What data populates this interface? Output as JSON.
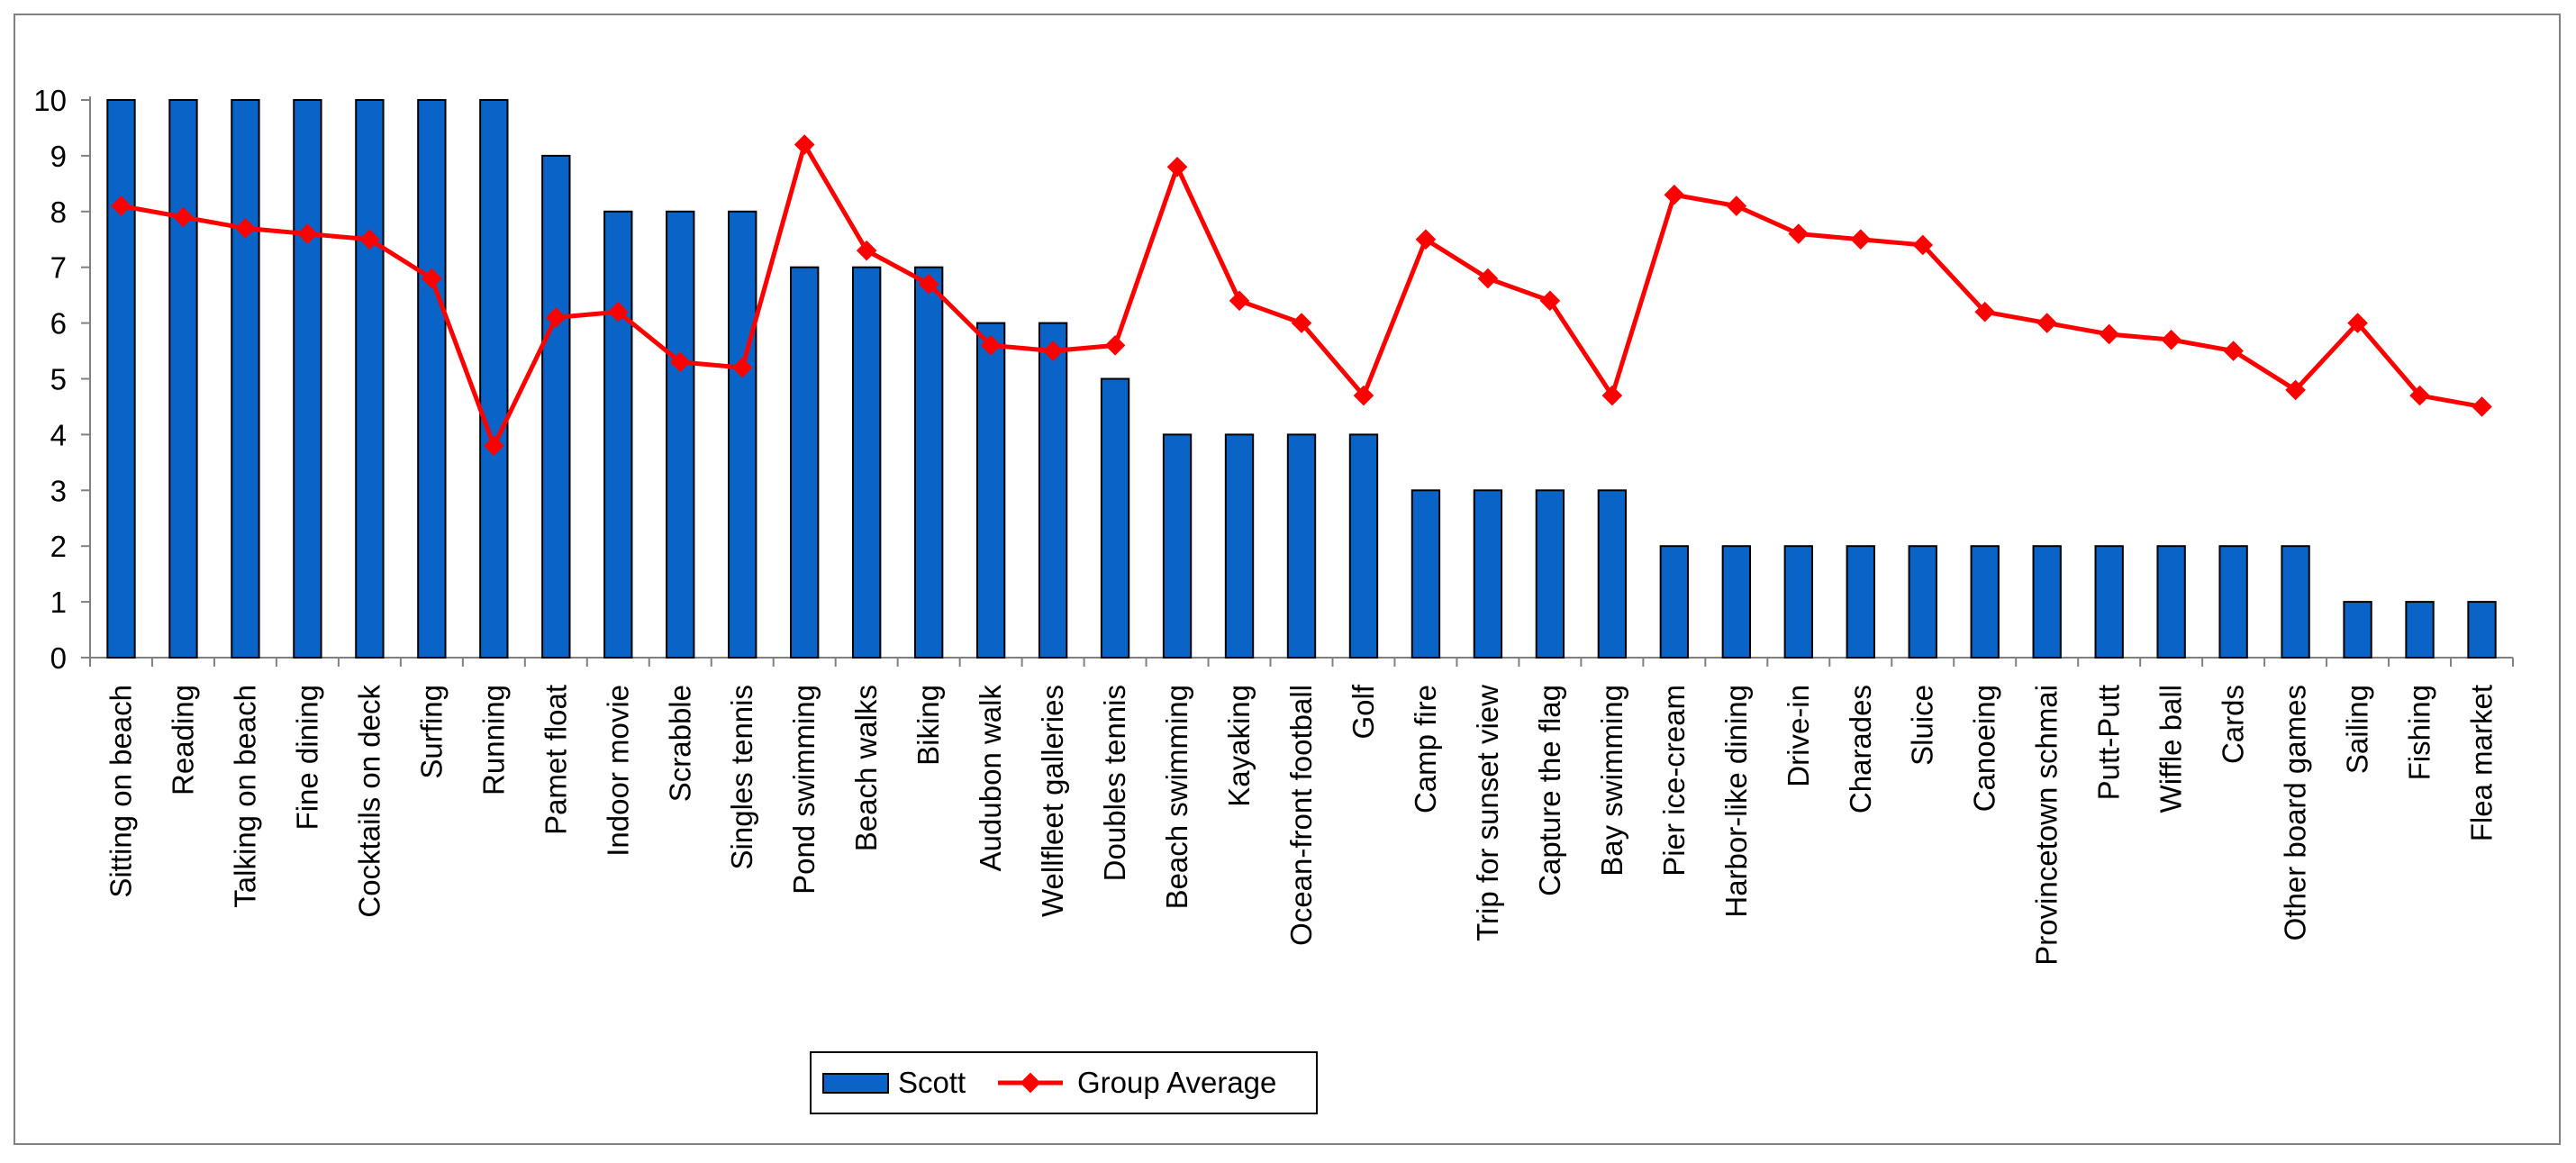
{
  "chart_data": {
    "type": "bar",
    "categories": [
      "Sitting on beach",
      "Reading",
      "Talking on beach",
      "Fine dining",
      "Cocktails on deck",
      "Surfing",
      "Running",
      "Pamet float",
      "Indoor movie",
      "Scrabble",
      "Singles tennis",
      "Pond swimming",
      "Beach walks",
      "Biking",
      "Audubon walk",
      "Wellfleet galleries",
      "Doubles tennis",
      "Beach swimming",
      "Kayaking",
      "Ocean-front football",
      "Golf",
      "Camp fire",
      "Trip for sunset view",
      "Capture the flag",
      "Bay swimming",
      "Pier ice-cream",
      "Harbor-like dining",
      "Drive-in",
      "Charades",
      "Sluice",
      "Canoeing",
      "Provincetown schmai",
      "Putt-Putt",
      "Wiffle ball",
      "Cards",
      "Other board games",
      "Sailing",
      "Fishing",
      "Flea market"
    ],
    "series": [
      {
        "name": "Scott",
        "type": "bar",
        "color": "#0a64c8",
        "values": [
          10,
          10,
          10,
          10,
          10,
          10,
          10,
          9,
          8,
          8,
          8,
          7,
          7,
          7,
          6,
          6,
          5,
          4,
          4,
          4,
          4,
          3,
          3,
          3,
          3,
          2,
          2,
          2,
          2,
          2,
          2,
          2,
          2,
          2,
          2,
          2,
          1,
          1,
          1
        ]
      },
      {
        "name": "Group Average",
        "type": "line",
        "color": "#ff0000",
        "values": [
          8.1,
          7.9,
          7.7,
          7.6,
          7.5,
          6.8,
          3.8,
          6.1,
          6.2,
          5.3,
          5.2,
          9.2,
          7.3,
          6.7,
          5.6,
          5.5,
          5.6,
          8.8,
          6.4,
          6.0,
          4.7,
          7.5,
          6.8,
          6.4,
          4.7,
          8.3,
          8.1,
          7.6,
          7.5,
          7.4,
          6.2,
          6.0,
          5.8,
          5.7,
          5.5,
          4.8,
          6.0,
          4.7,
          4.5
        ]
      }
    ],
    "ylim": [
      0,
      10
    ],
    "yticks": [
      0,
      1,
      2,
      3,
      4,
      5,
      6,
      7,
      8,
      9,
      10
    ],
    "xlabel": "",
    "ylabel": "",
    "title": "",
    "grid": false,
    "legend": "bottom-center"
  }
}
